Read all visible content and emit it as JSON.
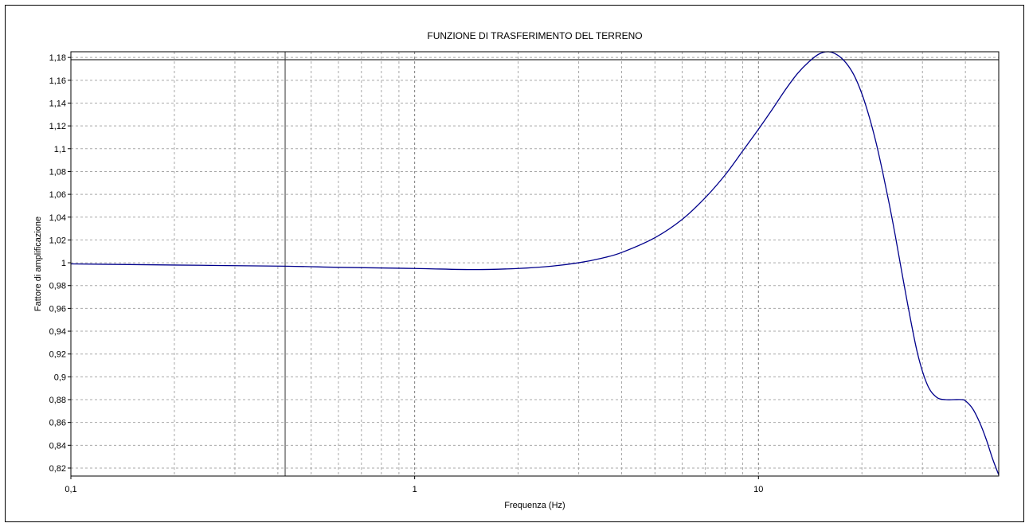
{
  "chart_data": {
    "type": "line",
    "title": "FUNZIONE DI TRASFERIMENTO DEL TERRENO",
    "xlabel": "Frequenza (Hz)",
    "ylabel": "Fattore di amplificazione",
    "xscale": "log",
    "xlim": [
      0.1,
      50
    ],
    "ylim": [
      0.813,
      1.185
    ],
    "x_tick_labels": [
      "0,1",
      "1",
      "10"
    ],
    "x_tick_values": [
      0.1,
      1,
      10
    ],
    "y_tick_values": [
      0.82,
      0.84,
      0.86,
      0.88,
      0.9,
      0.92,
      0.94,
      0.96,
      0.98,
      1,
      1.02,
      1.04,
      1.06,
      1.08,
      1.1,
      1.12,
      1.14,
      1.16,
      1.18
    ],
    "y_tick_labels": [
      "0,82",
      "0,84",
      "0,86",
      "0,88",
      "0,9",
      "0,92",
      "0,94",
      "0,96",
      "0,98",
      "1",
      "1,02",
      "1,04",
      "1,06",
      "1,08",
      "1,1",
      "1,12",
      "1,14",
      "1,16",
      "1,18"
    ],
    "grid": true,
    "reference_lines": {
      "vertical_x": 0.42,
      "horizontal_y": 1.178
    },
    "series": [
      {
        "color": "#00008b",
        "x": [
          0.1,
          0.2,
          0.42,
          0.6,
          1.0,
          1.5,
          2.0,
          2.5,
          3.0,
          3.5,
          4.0,
          5.0,
          6.0,
          7.0,
          8.0,
          9.0,
          10.0,
          11.0,
          12.0,
          13.0,
          14.0,
          15.0,
          16.0,
          17.0,
          18.0,
          19.0,
          20.0,
          21.0,
          22.0,
          23.0,
          24.0,
          25.0,
          27.0,
          29.0,
          31.0,
          33.0,
          35.0,
          37.0,
          39.0,
          40.0,
          42.0,
          44.0,
          46.0,
          48.0,
          50.0
        ],
        "y": [
          0.999,
          0.998,
          0.997,
          0.996,
          0.995,
          0.994,
          0.995,
          0.997,
          1.0,
          1.004,
          1.009,
          1.022,
          1.038,
          1.057,
          1.077,
          1.098,
          1.117,
          1.135,
          1.152,
          1.166,
          1.176,
          1.183,
          1.185,
          1.182,
          1.175,
          1.164,
          1.148,
          1.128,
          1.105,
          1.079,
          1.052,
          1.024,
          0.968,
          0.921,
          0.893,
          0.882,
          0.88,
          0.88,
          0.88,
          0.879,
          0.872,
          0.86,
          0.845,
          0.828,
          0.814
        ]
      }
    ]
  }
}
